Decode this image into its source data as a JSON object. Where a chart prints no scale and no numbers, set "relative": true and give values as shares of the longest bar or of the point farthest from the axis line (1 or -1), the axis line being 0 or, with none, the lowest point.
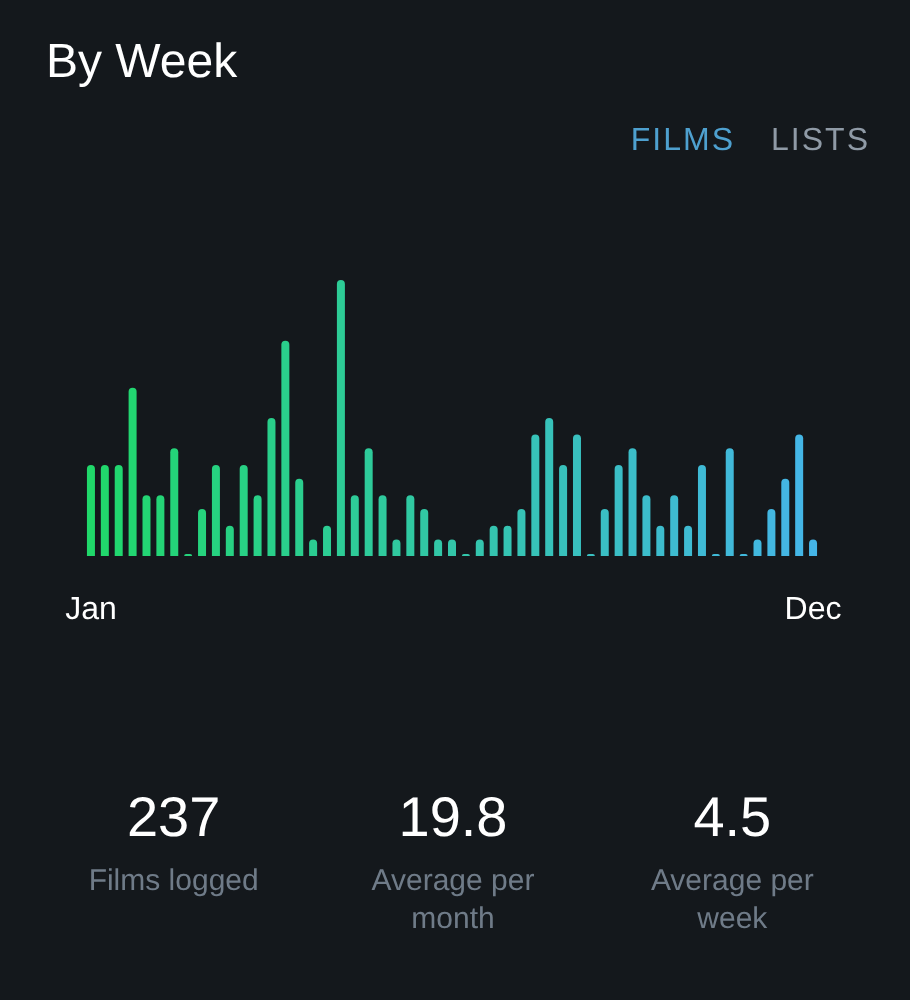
{
  "chart_data": {
    "type": "bar",
    "title": "By Week",
    "relative": true,
    "categories": [
      "Jan",
      null,
      null,
      null,
      null,
      null,
      null,
      null,
      null,
      null,
      null,
      null,
      null,
      null,
      null,
      null,
      null,
      null,
      null,
      null,
      null,
      null,
      null,
      null,
      null,
      null,
      null,
      null,
      null,
      null,
      null,
      null,
      null,
      null,
      null,
      null,
      null,
      null,
      null,
      null,
      null,
      null,
      null,
      null,
      null,
      null,
      null,
      null,
      null,
      null,
      null,
      null,
      "Dec"
    ],
    "values": [
      0.33,
      0.33,
      0.33,
      0.61,
      0.22,
      0.22,
      0.39,
      0,
      0.17,
      0.33,
      0.11,
      0.33,
      0.22,
      0.5,
      0.78,
      0.28,
      0.06,
      0.11,
      1,
      0.22,
      0.39,
      0.22,
      0.06,
      0.22,
      0.17,
      0.06,
      0.06,
      0,
      0.06,
      0.11,
      0.11,
      0.17,
      0.44,
      0.5,
      0.33,
      0.44,
      0,
      0.17,
      0.33,
      0.39,
      0.22,
      0.11,
      0.22,
      0.11,
      0.33,
      0,
      0.39,
      0,
      0.06,
      0.17,
      0.28,
      0.44,
      0.06
    ],
    "colors": [
      "#20d86a",
      "#21d76c",
      "#21d76f",
      "#22d671",
      "#23d574",
      "#24d576",
      "#24d479",
      "#25d37b",
      "#26d37d",
      "#26d280",
      "#27d182",
      "#28d185",
      "#29d087",
      "#29cf8a",
      "#2acf8c",
      "#2bce8e",
      "#2bcd91",
      "#2ccd93",
      "#2dcc96",
      "#2ecb98",
      "#2ecb9a",
      "#2fca9d",
      "#30c99f",
      "#30c9a2",
      "#31c8a4",
      "#32c7a7",
      "#33c6a9",
      "#33c6ab",
      "#34c5ae",
      "#35c4b0",
      "#35c4b3",
      "#36c3b5",
      "#37c2b8",
      "#37c2ba",
      "#38c1bc",
      "#39c0bf",
      "#3ac0c1",
      "#3abfc4",
      "#3bbec6",
      "#3cbec9",
      "#3cbdcb",
      "#3dbccd",
      "#3ebcd0",
      "#3fbbd2",
      "#3fbad5",
      "#40bad7",
      "#41b9d9",
      "#41b8dc",
      "#42b8de",
      "#43b7e1",
      "#44b6e3",
      "#44b6e6",
      "#45b5e8"
    ],
    "annotations": [
      "FILMS",
      "LISTS",
      "237",
      "Films logged",
      "19.8",
      "Average per month",
      "4.5",
      "Average per week"
    ]
  }
}
